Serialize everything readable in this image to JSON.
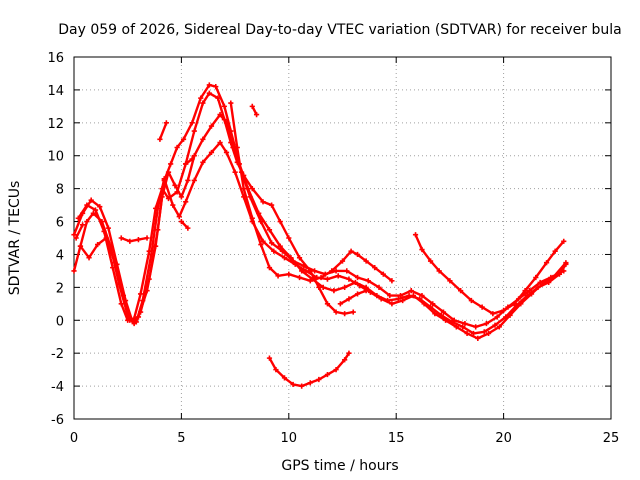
{
  "chart_data": {
    "type": "scatter",
    "title": "Day 059 of 2026, Sidereal Day-to-day VTEC variation (SDTVAR) for receiver bula",
    "xlabel": "GPS time / hours",
    "ylabel": "SDTVAR / TECUs",
    "xlim": [
      0,
      25
    ],
    "ylim": [
      -6,
      16
    ],
    "xticks": [
      0,
      5,
      10,
      15,
      20,
      25
    ],
    "yticks": [
      -6,
      -4,
      -2,
      0,
      2,
      4,
      6,
      8,
      10,
      12,
      14,
      16
    ],
    "grid": true,
    "marker": "plus",
    "color": "#ff0000",
    "series": [
      {
        "name": "track-1",
        "points": [
          [
            0,
            3.0
          ],
          [
            0.3,
            4.5
          ],
          [
            0.6,
            6.0
          ],
          [
            0.9,
            6.5
          ],
          [
            1.3,
            6.0
          ],
          [
            1.7,
            4.5
          ],
          [
            2.1,
            2.2
          ],
          [
            2.5,
            0.3
          ],
          [
            2.8,
            -0.2
          ],
          [
            3.1,
            0.5
          ],
          [
            3.5,
            2.5
          ],
          [
            3.9,
            5.5
          ],
          [
            4.2,
            8.5
          ],
          [
            4.5,
            9.5
          ],
          [
            4.8,
            10.5
          ],
          [
            5.1,
            11.0
          ],
          [
            5.5,
            12.0
          ],
          [
            5.9,
            13.5
          ],
          [
            6.3,
            14.3
          ],
          [
            6.6,
            14.2
          ],
          [
            7.0,
            13.0
          ],
          [
            7.3,
            11.5
          ],
          [
            7.7,
            9.5
          ],
          [
            8.1,
            8.0
          ],
          [
            8.6,
            6.5
          ],
          [
            9.1,
            5.5
          ],
          [
            9.6,
            4.5
          ],
          [
            10.1,
            3.8
          ],
          [
            10.6,
            3.0
          ],
          [
            11.1,
            2.5
          ],
          [
            11.6,
            2.0
          ],
          [
            12.1,
            1.8
          ],
          [
            12.6,
            2.0
          ],
          [
            13.1,
            2.3
          ],
          [
            13.6,
            2.0
          ],
          [
            14.1,
            1.5
          ],
          [
            14.6,
            1.2
          ],
          [
            15.1,
            1.3
          ],
          [
            15.6,
            1.5
          ],
          [
            16.1,
            1.3
          ],
          [
            16.6,
            0.8
          ],
          [
            17.1,
            0.3
          ],
          [
            17.6,
            -0.1
          ],
          [
            18.1,
            -0.4
          ],
          [
            18.6,
            -0.8
          ],
          [
            19.1,
            -0.7
          ],
          [
            19.6,
            -0.3
          ],
          [
            20.1,
            0.2
          ],
          [
            20.6,
            0.9
          ],
          [
            21.1,
            1.5
          ],
          [
            21.6,
            2.0
          ],
          [
            22.1,
            2.3
          ],
          [
            22.6,
            2.8
          ],
          [
            22.9,
            3.4
          ]
        ]
      },
      {
        "name": "track-2",
        "points": [
          [
            0,
            5.2
          ],
          [
            0.4,
            6.5
          ],
          [
            0.8,
            7.3
          ],
          [
            1.2,
            6.9
          ],
          [
            1.6,
            5.6
          ],
          [
            2.0,
            3.4
          ],
          [
            2.4,
            1.2
          ],
          [
            2.7,
            0.0
          ],
          [
            3.0,
            0.2
          ],
          [
            3.4,
            1.8
          ],
          [
            3.8,
            4.5
          ],
          [
            4.1,
            7.5
          ],
          [
            4.4,
            9.0
          ],
          [
            4.7,
            8.2
          ],
          [
            5.0,
            7.5
          ],
          [
            5.3,
            8.5
          ],
          [
            5.6,
            10.0
          ],
          [
            6.0,
            11.0
          ],
          [
            6.4,
            11.8
          ],
          [
            6.8,
            12.5
          ],
          [
            7.1,
            12.0
          ],
          [
            7.4,
            10.5
          ],
          [
            7.8,
            9.0
          ],
          [
            8.2,
            7.5
          ],
          [
            8.7,
            6.0
          ],
          [
            9.2,
            4.7
          ],
          [
            9.7,
            4.2
          ],
          [
            10.2,
            3.6
          ],
          [
            10.7,
            3.3
          ],
          [
            11.2,
            3.0
          ],
          [
            11.7,
            2.8
          ],
          [
            12.2,
            3.0
          ],
          [
            12.7,
            3.0
          ],
          [
            13.2,
            2.6
          ],
          [
            13.7,
            2.4
          ],
          [
            14.2,
            2.0
          ],
          [
            14.7,
            1.5
          ],
          [
            15.2,
            1.5
          ],
          [
            15.7,
            1.8
          ],
          [
            16.2,
            1.5
          ],
          [
            16.7,
            1.0
          ],
          [
            17.2,
            0.5
          ],
          [
            17.7,
            0.0
          ],
          [
            18.2,
            -0.2
          ],
          [
            18.7,
            -0.4
          ],
          [
            19.2,
            -0.2
          ],
          [
            19.7,
            0.2
          ],
          [
            20.2,
            0.8
          ],
          [
            20.7,
            1.3
          ],
          [
            21.2,
            1.8
          ],
          [
            21.7,
            2.3
          ],
          [
            22.2,
            2.6
          ],
          [
            22.8,
            3.0
          ]
        ]
      },
      {
        "name": "track-3",
        "points": [
          [
            0.3,
            4.5
          ],
          [
            0.7,
            3.8
          ],
          [
            1.1,
            4.6
          ],
          [
            1.5,
            5.0
          ],
          [
            1.9,
            3.5
          ],
          [
            2.3,
            1.5
          ],
          [
            2.6,
            0.0
          ],
          [
            2.9,
            -0.1
          ],
          [
            3.2,
            1.2
          ],
          [
            3.6,
            4.0
          ],
          [
            3.9,
            6.8
          ],
          [
            4.2,
            8.6
          ],
          [
            4.6,
            7.0
          ],
          [
            4.9,
            6.3
          ],
          [
            5.2,
            7.2
          ],
          [
            5.6,
            8.5
          ],
          [
            6.0,
            9.6
          ],
          [
            6.4,
            10.2
          ],
          [
            6.8,
            10.8
          ],
          [
            7.1,
            10.2
          ],
          [
            7.5,
            9.0
          ],
          [
            7.9,
            7.5
          ],
          [
            8.3,
            6.0
          ],
          [
            8.8,
            4.8
          ],
          [
            9.3,
            4.2
          ],
          [
            9.8,
            3.8
          ],
          [
            10.3,
            3.4
          ],
          [
            10.8,
            3.0
          ],
          [
            11.3,
            2.6
          ],
          [
            11.8,
            2.5
          ],
          [
            12.3,
            2.7
          ],
          [
            12.8,
            2.5
          ],
          [
            13.3,
            2.1
          ],
          [
            13.8,
            1.7
          ],
          [
            14.3,
            1.3
          ],
          [
            14.8,
            1.0
          ],
          [
            15.3,
            1.2
          ],
          [
            15.8,
            1.5
          ],
          [
            16.3,
            1.0
          ],
          [
            16.8,
            0.4
          ],
          [
            17.3,
            0.0
          ],
          [
            17.8,
            -0.4
          ],
          [
            18.3,
            -0.8
          ],
          [
            18.8,
            -1.1
          ],
          [
            19.3,
            -0.8
          ],
          [
            19.8,
            -0.4
          ],
          [
            20.3,
            0.3
          ],
          [
            20.8,
            1.0
          ],
          [
            21.3,
            1.6
          ],
          [
            21.8,
            2.2
          ],
          [
            22.3,
            2.6
          ],
          [
            22.9,
            3.5
          ]
        ]
      },
      {
        "name": "track-4",
        "points": [
          [
            0.2,
            6.2
          ],
          [
            0.6,
            7.0
          ],
          [
            1.0,
            6.7
          ],
          [
            1.4,
            5.4
          ],
          [
            1.8,
            3.2
          ],
          [
            2.2,
            1.0
          ],
          [
            2.5,
            0.0
          ],
          [
            2.8,
            0.1
          ],
          [
            3.1,
            1.6
          ],
          [
            3.5,
            4.2
          ],
          [
            3.8,
            6.8
          ],
          [
            4.1,
            8.0
          ],
          [
            4.4,
            7.4
          ],
          [
            4.8,
            7.8
          ],
          [
            5.2,
            9.5
          ],
          [
            5.6,
            11.5
          ],
          [
            6.0,
            13.2
          ],
          [
            6.3,
            13.8
          ],
          [
            6.7,
            13.5
          ],
          [
            7.0,
            12.2
          ],
          [
            7.3,
            10.8
          ],
          [
            7.6,
            9.6
          ],
          [
            7.9,
            8.8
          ],
          [
            8.3,
            8.0
          ],
          [
            8.8,
            7.2
          ],
          [
            9.2,
            7.0
          ],
          [
            9.6,
            6.0
          ],
          [
            10.0,
            5.0
          ],
          [
            10.5,
            3.8
          ],
          [
            11.0,
            3.0
          ],
          [
            11.4,
            2.0
          ],
          [
            11.8,
            1.0
          ],
          [
            12.2,
            0.5
          ],
          [
            12.6,
            0.4
          ],
          [
            13.0,
            0.5
          ]
        ]
      },
      {
        "name": "track-5",
        "points": [
          [
            7.3,
            13.2
          ],
          [
            7.6,
            10.5
          ],
          [
            7.9,
            8.0
          ],
          [
            8.3,
            6.2
          ],
          [
            8.7,
            4.6
          ],
          [
            9.1,
            3.2
          ],
          [
            9.5,
            2.7
          ],
          [
            10.0,
            2.8
          ],
          [
            10.5,
            2.6
          ],
          [
            11.0,
            2.4
          ],
          [
            11.5,
            2.6
          ],
          [
            12.0,
            3.0
          ],
          [
            12.5,
            3.6
          ],
          [
            12.9,
            4.2
          ],
          [
            13.2,
            4.0
          ],
          [
            13.6,
            3.6
          ],
          [
            14.0,
            3.2
          ],
          [
            14.4,
            2.8
          ],
          [
            14.8,
            2.4
          ]
        ]
      },
      {
        "name": "track-6",
        "points": [
          [
            4.0,
            11.0
          ],
          [
            4.3,
            12.0
          ]
        ]
      },
      {
        "name": "track-7",
        "points": [
          [
            2.2,
            5.0
          ],
          [
            2.6,
            4.8
          ],
          [
            3.0,
            4.9
          ],
          [
            3.4,
            5.0
          ]
        ]
      },
      {
        "name": "track-8",
        "points": [
          [
            5.0,
            6.0
          ],
          [
            5.3,
            5.6
          ]
        ]
      },
      {
        "name": "track-9",
        "points": [
          [
            0.1,
            5.0
          ],
          [
            0.4,
            5.8
          ]
        ]
      },
      {
        "name": "track-10",
        "points": [
          [
            8.3,
            13.0
          ],
          [
            8.5,
            12.5
          ]
        ]
      },
      {
        "name": "track-11",
        "points": [
          [
            9.1,
            -2.3
          ],
          [
            9.4,
            -3.0
          ],
          [
            9.8,
            -3.5
          ],
          [
            10.2,
            -3.9
          ],
          [
            10.6,
            -4.0
          ],
          [
            11.0,
            -3.8
          ],
          [
            11.4,
            -3.6
          ],
          [
            11.8,
            -3.3
          ],
          [
            12.2,
            -3.0
          ],
          [
            12.6,
            -2.4
          ],
          [
            12.8,
            -2.0
          ]
        ]
      },
      {
        "name": "track-12",
        "points": [
          [
            15.9,
            5.2
          ],
          [
            16.2,
            4.3
          ],
          [
            16.6,
            3.6
          ],
          [
            17.0,
            3.0
          ],
          [
            17.5,
            2.4
          ],
          [
            18.0,
            1.8
          ],
          [
            18.5,
            1.2
          ],
          [
            19.0,
            0.8
          ],
          [
            19.5,
            0.4
          ],
          [
            20.0,
            0.6
          ],
          [
            20.5,
            1.0
          ],
          [
            21.0,
            1.8
          ],
          [
            21.5,
            2.6
          ],
          [
            22.0,
            3.5
          ],
          [
            22.4,
            4.2
          ],
          [
            22.8,
            4.8
          ]
        ]
      },
      {
        "name": "track-13",
        "points": [
          [
            12.4,
            1.0
          ],
          [
            12.8,
            1.3
          ],
          [
            13.2,
            1.6
          ],
          [
            13.6,
            1.8
          ]
        ]
      },
      {
        "name": "track-14",
        "points": [
          [
            5.2,
            9.5
          ],
          [
            5.5,
            9.8
          ]
        ]
      }
    ]
  }
}
